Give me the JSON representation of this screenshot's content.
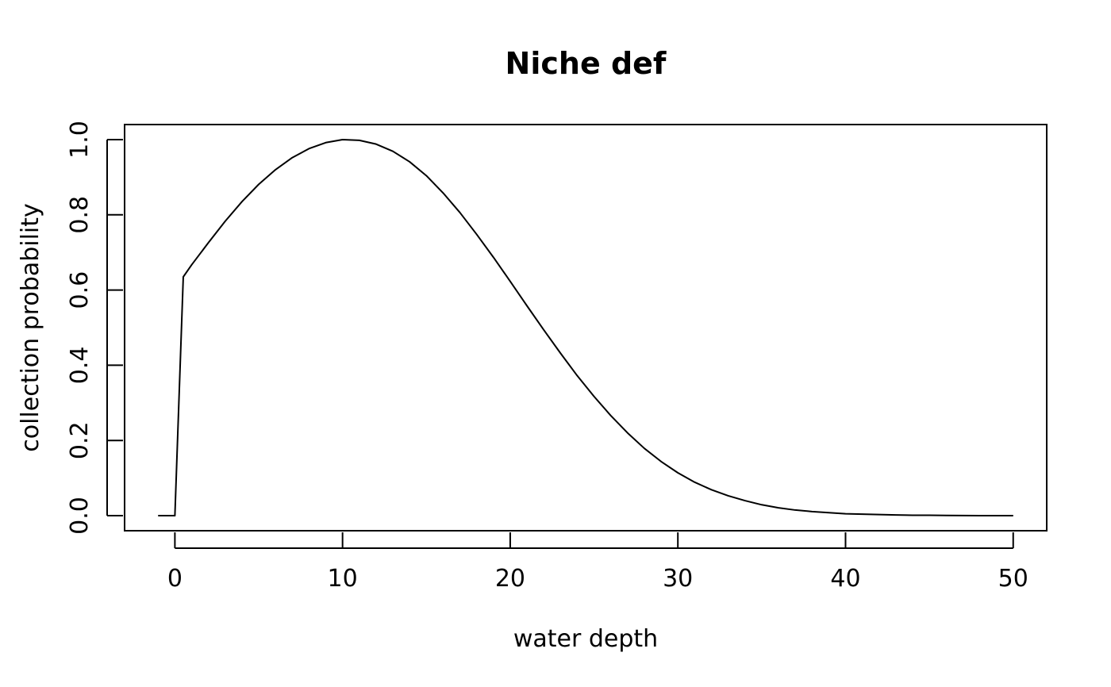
{
  "chart_data": {
    "type": "line",
    "title": "Niche def",
    "xlabel": "water depth",
    "ylabel": "collection probability",
    "xlim": [
      -3,
      52
    ],
    "ylim": [
      -0.04,
      1.04
    ],
    "x_ticks": [
      0,
      10,
      20,
      30,
      40,
      50
    ],
    "y_ticks": [
      0.0,
      0.2,
      0.4,
      0.6,
      0.8,
      1.0
    ],
    "x_tick_labels": [
      "0",
      "10",
      "20",
      "30",
      "40",
      "50"
    ],
    "y_tick_labels": [
      "0.0",
      "0.2",
      "0.4",
      "0.6",
      "0.8",
      "1.0"
    ],
    "grid": false,
    "legend": "none",
    "series": [
      {
        "color": "#000000",
        "x": [
          -1,
          0,
          0.5,
          1,
          2,
          3,
          4,
          5,
          6,
          7,
          8,
          9,
          10,
          11,
          12,
          13,
          14,
          15,
          16,
          17,
          18,
          19,
          20,
          21,
          22,
          23,
          24,
          25,
          26,
          27,
          28,
          29,
          30,
          31,
          32,
          33,
          34,
          35,
          36,
          37,
          38,
          39,
          40,
          41,
          42,
          43,
          44,
          45,
          46,
          47,
          48,
          49,
          50
        ],
        "y": [
          0,
          0,
          0.635,
          0.667,
          0.726,
          0.783,
          0.835,
          0.881,
          0.92,
          0.952,
          0.976,
          0.992,
          1.0,
          0.998,
          0.988,
          0.969,
          0.941,
          0.904,
          0.858,
          0.806,
          0.748,
          0.687,
          0.623,
          0.558,
          0.494,
          0.432,
          0.372,
          0.317,
          0.266,
          0.22,
          0.179,
          0.144,
          0.114,
          0.089,
          0.069,
          0.053,
          0.04,
          0.029,
          0.021,
          0.015,
          0.011,
          0.008,
          0.005,
          0.004,
          0.003,
          0.002,
          0.001,
          0.001,
          0.0005,
          0.0003,
          0.0002,
          0.0001,
          0.0001
        ]
      }
    ]
  }
}
